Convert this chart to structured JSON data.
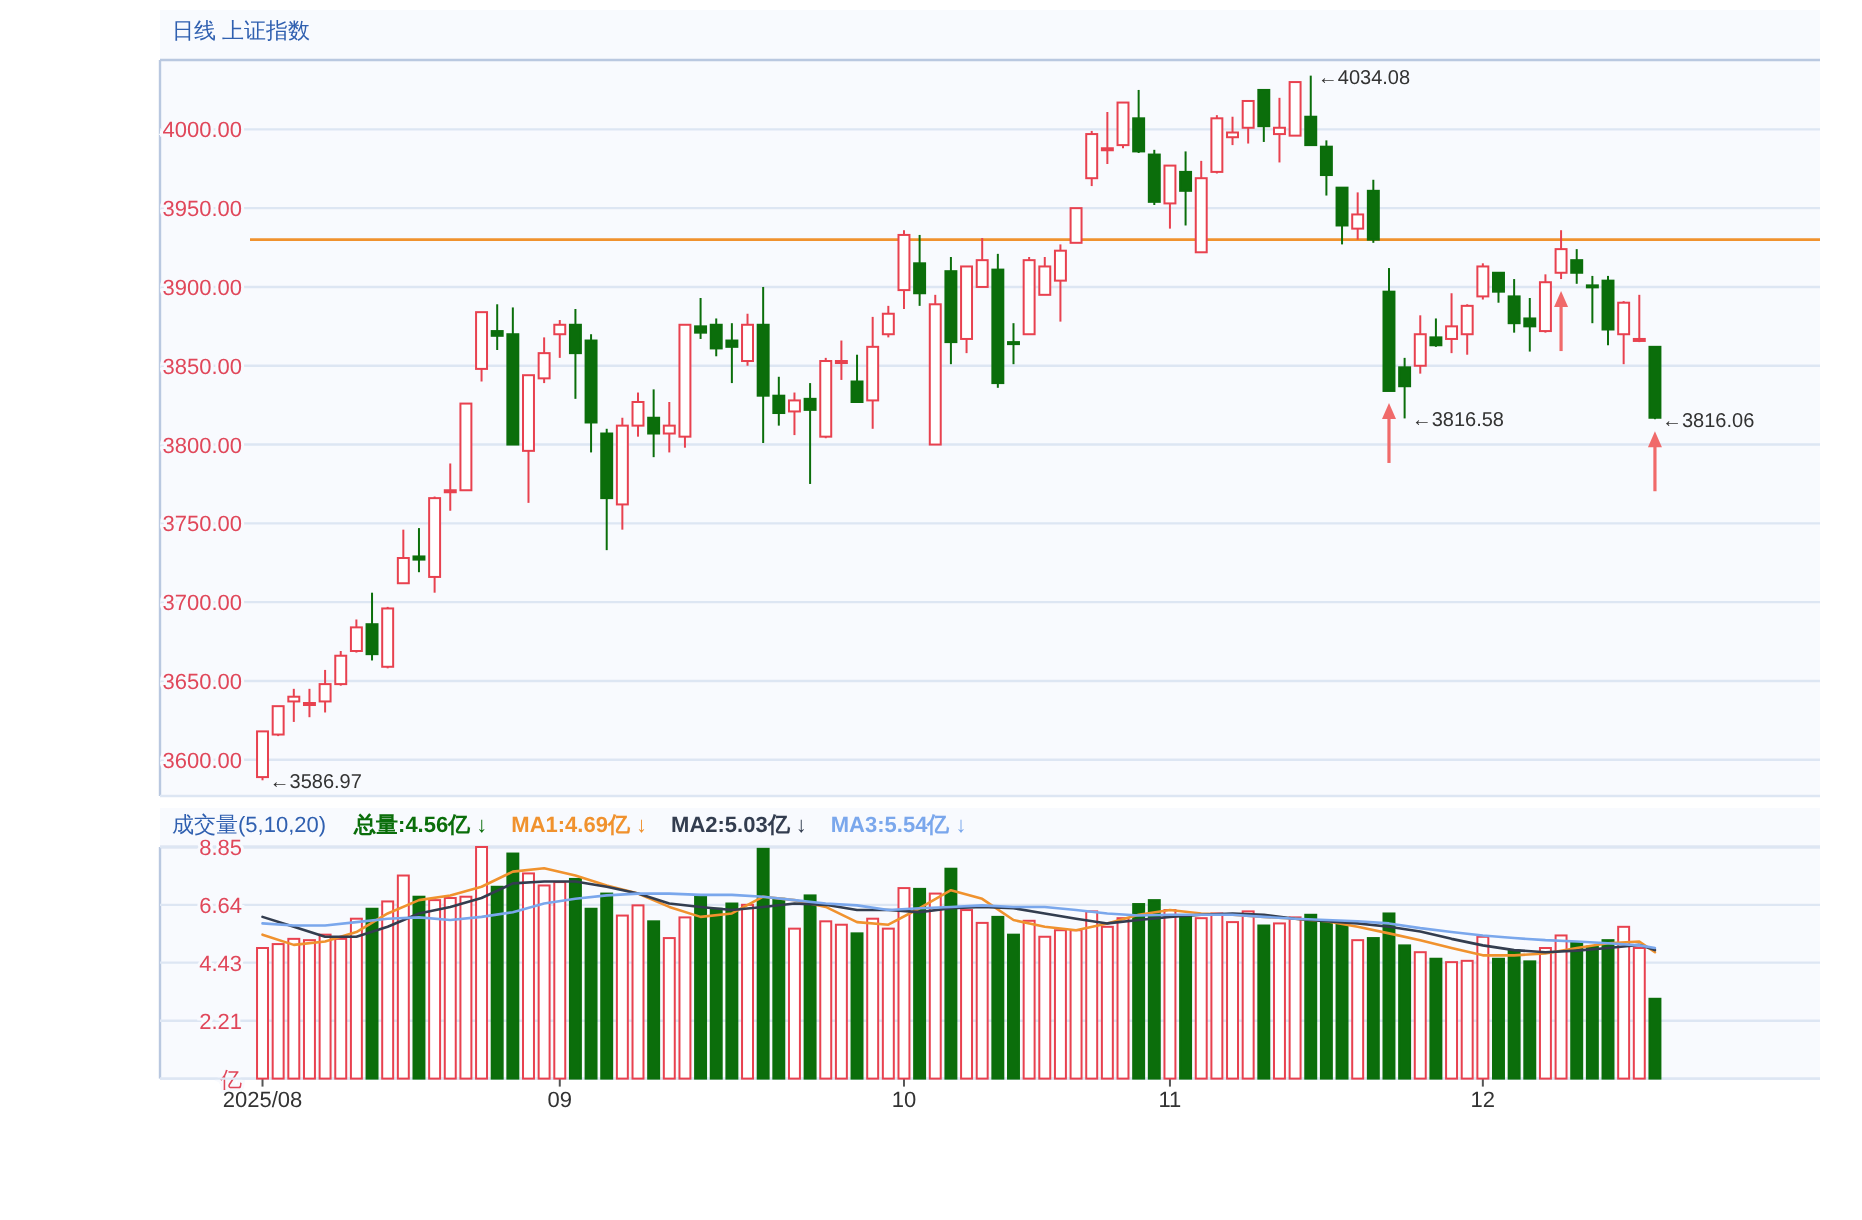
{
  "chart_data": [
    {
      "type": "candlestick",
      "title": "日线 上证指数",
      "categories": [
        "2025/08",
        null,
        null,
        null,
        null,
        null,
        null,
        null,
        null,
        null,
        null,
        null,
        null,
        null,
        null,
        null,
        null,
        null,
        null,
        "09",
        null,
        null,
        null,
        null,
        null,
        null,
        null,
        null,
        null,
        null,
        null,
        null,
        null,
        null,
        null,
        null,
        null,
        null,
        null,
        null,
        null,
        "10",
        null,
        null,
        null,
        null,
        null,
        null,
        null,
        null,
        null,
        null,
        null,
        null,
        null,
        null,
        null,
        null,
        "11",
        null,
        null,
        null,
        null,
        null,
        null,
        null,
        null,
        null,
        null,
        null,
        null,
        null,
        null,
        null,
        null,
        null,
        null,
        null,
        "12",
        null,
        null,
        null,
        null,
        null,
        null,
        null,
        null,
        null,
        null,
        null
      ],
      "ohlc": [
        [
          3589,
          3618,
          3586.97,
          3618
        ],
        [
          3616,
          3634,
          3615,
          3634
        ],
        [
          3637,
          3645,
          3624,
          3640
        ],
        [
          3635,
          3645,
          3627,
          3636
        ],
        [
          3637,
          3657,
          3630,
          3648
        ],
        [
          3648,
          3669,
          3647,
          3666
        ],
        [
          3669,
          3689,
          3668,
          3684
        ],
        [
          3686,
          3706,
          3663,
          3667
        ],
        [
          3659,
          3697,
          3658,
          3696
        ],
        [
          3712,
          3746,
          3712,
          3728
        ],
        [
          3729,
          3747,
          3719,
          3727
        ],
        [
          3716,
          3767,
          3706,
          3766
        ],
        [
          3770,
          3788,
          3758,
          3771
        ],
        [
          3771,
          3826,
          3771,
          3826
        ],
        [
          3848,
          3884,
          3840,
          3884
        ],
        [
          3872,
          3889,
          3860,
          3869
        ],
        [
          3870,
          3887,
          3800,
          3800
        ],
        [
          3796,
          3844,
          3763,
          3844
        ],
        [
          3842,
          3868,
          3839,
          3858
        ],
        [
          3870,
          3879,
          3855,
          3876
        ],
        [
          3876,
          3886,
          3829,
          3858
        ],
        [
          3866,
          3870,
          3795,
          3814
        ],
        [
          3807,
          3810,
          3733,
          3766
        ],
        [
          3762,
          3817,
          3746,
          3812
        ],
        [
          3812,
          3833,
          3805,
          3827
        ],
        [
          3817,
          3835,
          3792,
          3807
        ],
        [
          3807,
          3827,
          3795,
          3812
        ],
        [
          3805,
          3876,
          3798,
          3876
        ],
        [
          3875,
          3893,
          3867,
          3871
        ],
        [
          3876,
          3880,
          3856,
          3861
        ],
        [
          3866,
          3877,
          3839,
          3862
        ],
        [
          3853,
          3883,
          3850,
          3876
        ],
        [
          3876,
          3900,
          3801,
          3831
        ],
        [
          3831,
          3843,
          3812,
          3820
        ],
        [
          3821,
          3833,
          3806,
          3828
        ],
        [
          3829,
          3839,
          3775,
          3822
        ],
        [
          3805,
          3855,
          3804,
          3853
        ],
        [
          3852,
          3866,
          3841,
          3853
        ],
        [
          3840,
          3857,
          3827,
          3827
        ],
        [
          3828,
          3881,
          3810,
          3862
        ],
        [
          3870,
          3888,
          3868,
          3883
        ],
        [
          3898,
          3936,
          3886,
          3933
        ],
        [
          3915,
          3933,
          3888,
          3896
        ],
        [
          3800,
          3895,
          3800,
          3889
        ],
        [
          3910,
          3919,
          3851,
          3865
        ],
        [
          3867,
          3913,
          3858,
          3913
        ],
        [
          3900,
          3931,
          3900,
          3917
        ],
        [
          3911,
          3921,
          3836,
          3839
        ],
        [
          3865,
          3877,
          3851,
          3864
        ],
        [
          3870,
          3919,
          3870,
          3917
        ],
        [
          3895,
          3919,
          3895,
          3913
        ],
        [
          3904,
          3927,
          3878,
          3923
        ],
        [
          3928,
          3950,
          3928,
          3950
        ],
        [
          3969,
          3999,
          3964,
          3997
        ],
        [
          3987,
          4011,
          3978,
          3988
        ],
        [
          3990,
          4017,
          3988,
          4017
        ],
        [
          4007,
          4025,
          3985,
          3986
        ],
        [
          3984,
          3987,
          3952,
          3954
        ],
        [
          3953,
          3977,
          3937,
          3977
        ],
        [
          3973,
          3986,
          3939,
          3961
        ],
        [
          3922,
          3980,
          3922,
          3969
        ],
        [
          3973,
          4009,
          3972,
          4007
        ],
        [
          3995,
          4008,
          3990,
          3998
        ],
        [
          4001,
          4018,
          3991,
          4018
        ],
        [
          4025,
          4025,
          3992,
          4002
        ],
        [
          3997,
          4020,
          3979,
          4001
        ],
        [
          3996,
          4030,
          3996,
          4030
        ],
        [
          4008,
          4034.08,
          3990,
          3990
        ],
        [
          3989,
          3993,
          3958,
          3971
        ],
        [
          3963,
          3963,
          3927,
          3939
        ],
        [
          3937,
          3960,
          3930,
          3946
        ],
        [
          3961,
          3968,
          3928,
          3930
        ],
        [
          3897,
          3912,
          3834,
          3834
        ],
        [
          3849,
          3855,
          3816.58,
          3837
        ],
        [
          3850,
          3882,
          3845,
          3870
        ],
        [
          3868,
          3880,
          3862,
          3863
        ],
        [
          3867,
          3896,
          3858,
          3875
        ],
        [
          3870,
          3889,
          3857,
          3888
        ],
        [
          3894,
          3915,
          3892,
          3913
        ],
        [
          3909,
          3909,
          3890,
          3897
        ],
        [
          3894,
          3905,
          3871,
          3877
        ],
        [
          3880,
          3893,
          3859,
          3875
        ],
        [
          3872,
          3908,
          3871,
          3903
        ],
        [
          3909,
          3936,
          3905,
          3924
        ],
        [
          3917,
          3924,
          3902,
          3909
        ],
        [
          3901,
          3907,
          3877,
          3900
        ],
        [
          3904,
          3907,
          3863,
          3873
        ],
        [
          3870,
          3891,
          3851,
          3890
        ],
        [
          3866,
          3895,
          3865,
          3867
        ],
        [
          3862,
          3862,
          3816.06,
          3817
        ]
      ],
      "colors": [
        "#e8414f",
        "#e8414f",
        "#e8414f",
        "#e8414f",
        "#e8414f",
        "#e8414f",
        "#e8414f",
        "#0b6e0b",
        "#e8414f",
        "#e8414f",
        "#0b6e0b",
        "#e8414f",
        "#e8414f",
        "#e8414f",
        "#e8414f",
        "#0b6e0b",
        "#0b6e0b",
        "#e8414f",
        "#e8414f",
        "#e8414f",
        "#0b6e0b",
        "#0b6e0b",
        "#0b6e0b",
        "#e8414f",
        "#e8414f",
        "#0b6e0b",
        "#e8414f",
        "#e8414f",
        "#0b6e0b",
        "#0b6e0b",
        "#0b6e0b",
        "#e8414f",
        "#0b6e0b",
        "#0b6e0b",
        "#e8414f",
        "#0b6e0b",
        "#e8414f",
        "#e8414f",
        "#0b6e0b",
        "#e8414f",
        "#e8414f",
        "#e8414f",
        "#0b6e0b",
        "#e8414f",
        "#0b6e0b",
        "#e8414f",
        "#e8414f",
        "#0b6e0b",
        "#0b6e0b",
        "#e8414f",
        "#e8414f",
        "#e8414f",
        "#e8414f",
        "#e8414f",
        "#e8414f",
        "#e8414f",
        "#0b6e0b",
        "#0b6e0b",
        "#e8414f",
        "#0b6e0b",
        "#e8414f",
        "#e8414f",
        "#e8414f",
        "#e8414f",
        "#0b6e0b",
        "#e8414f",
        "#e8414f",
        "#0b6e0b",
        "#0b6e0b",
        "#0b6e0b",
        "#e8414f",
        "#0b6e0b",
        "#0b6e0b",
        "#0b6e0b",
        "#e8414f",
        "#0b6e0b",
        "#e8414f",
        "#e8414f",
        "#e8414f",
        "#0b6e0b",
        "#0b6e0b",
        "#0b6e0b",
        "#e8414f",
        "#e8414f",
        "#0b6e0b",
        "#0b6e0b",
        "#0b6e0b",
        "#e8414f",
        "#e8414f",
        "#0b6e0b"
      ],
      "ylim": [
        3577,
        4044
      ],
      "yticks": [
        {
          "value": 3600,
          "label": "3600.00"
        },
        {
          "value": 3650,
          "label": "3650.00"
        },
        {
          "value": 3700,
          "label": "3700.00"
        },
        {
          "value": 3750,
          "label": "3750.00"
        },
        {
          "value": 3800,
          "label": "3800.00"
        },
        {
          "value": 3850,
          "label": "3850.00"
        },
        {
          "value": 3900,
          "label": "3900.00"
        },
        {
          "value": 3950,
          "label": "3950.00"
        },
        {
          "value": 4000,
          "label": "4000.00"
        }
      ],
      "grid": "y",
      "tick_labels": "y",
      "ref_lines": [
        {
          "axis": "y",
          "value": 3930,
          "color": "#f0922e"
        }
      ],
      "annotations": [
        "←3586.97",
        "←4034.08",
        "←3816.58",
        "←3816.06"
      ]
    },
    {
      "type": "bar",
      "title": "成交量(5,10,20)",
      "categories": [
        "2025/08",
        null,
        null,
        null,
        null,
        null,
        null,
        null,
        null,
        null,
        null,
        null,
        null,
        null,
        null,
        null,
        null,
        null,
        null,
        "09",
        null,
        null,
        null,
        null,
        null,
        null,
        null,
        null,
        null,
        null,
        null,
        null,
        null,
        null,
        null,
        null,
        null,
        null,
        null,
        null,
        null,
        "10",
        null,
        null,
        null,
        null,
        null,
        null,
        null,
        null,
        null,
        null,
        null,
        null,
        null,
        null,
        null,
        null,
        "11",
        null,
        null,
        null,
        null,
        null,
        null,
        null,
        null,
        null,
        null,
        null,
        null,
        null,
        null,
        null,
        null,
        null,
        null,
        null,
        "12",
        null,
        null,
        null,
        null,
        null,
        null,
        null,
        null,
        null,
        null,
        null
      ],
      "ylim": [
        0,
        8.85
      ],
      "yticks": [
        {
          "value": 0,
          "label": "亿"
        },
        2.21,
        4.43,
        6.64,
        8.85
      ],
      "grid": "y",
      "legend": "top left",
      "series": [
        {
          "name": "总量:4.56亿 ↓",
          "color": "#0b6e0b",
          "colors": [
            "#e8414f",
            "#e8414f",
            "#e8414f",
            "#e8414f",
            "#e8414f",
            "#e8414f",
            "#e8414f",
            "#0b6e0b",
            "#e8414f",
            "#e8414f",
            "#0b6e0b",
            "#e8414f",
            "#e8414f",
            "#e8414f",
            "#e8414f",
            "#0b6e0b",
            "#0b6e0b",
            "#e8414f",
            "#e8414f",
            "#e8414f",
            "#0b6e0b",
            "#0b6e0b",
            "#0b6e0b",
            "#e8414f",
            "#e8414f",
            "#0b6e0b",
            "#e8414f",
            "#e8414f",
            "#0b6e0b",
            "#0b6e0b",
            "#0b6e0b",
            "#e8414f",
            "#0b6e0b",
            "#0b6e0b",
            "#e8414f",
            "#0b6e0b",
            "#e8414f",
            "#e8414f",
            "#0b6e0b",
            "#e8414f",
            "#e8414f",
            "#e8414f",
            "#0b6e0b",
            "#e8414f",
            "#0b6e0b",
            "#e8414f",
            "#e8414f",
            "#0b6e0b",
            "#0b6e0b",
            "#e8414f",
            "#e8414f",
            "#e8414f",
            "#e8414f",
            "#e8414f",
            "#e8414f",
            "#e8414f",
            "#0b6e0b",
            "#0b6e0b",
            "#e8414f",
            "#0b6e0b",
            "#e8414f",
            "#e8414f",
            "#e8414f",
            "#e8414f",
            "#0b6e0b",
            "#e8414f",
            "#e8414f",
            "#0b6e0b",
            "#0b6e0b",
            "#0b6e0b",
            "#e8414f",
            "#0b6e0b",
            "#0b6e0b",
            "#0b6e0b",
            "#e8414f",
            "#0b6e0b",
            "#e8414f",
            "#e8414f",
            "#e8414f",
            "#0b6e0b",
            "#0b6e0b",
            "#0b6e0b",
            "#e8414f",
            "#e8414f",
            "#0b6e0b",
            "#0b6e0b",
            "#0b6e0b",
            "#e8414f",
            "#e8414f",
            "#0b6e0b"
          ],
          "values": [
            4.99,
            5.14,
            5.34,
            5.29,
            5.5,
            5.34,
            6.11,
            6.49,
            6.77,
            7.76,
            6.95,
            6.82,
            6.9,
            6.95,
            8.85,
            7.33,
            8.6,
            7.84,
            7.38,
            7.51,
            7.63,
            6.49,
            7.07,
            6.23,
            6.62,
            6.01,
            5.37,
            6.16,
            7.0,
            6.49,
            6.69,
            6.64,
            8.78,
            6.87,
            5.73,
            7.0,
            6.01,
            5.88,
            5.55,
            6.11,
            5.73,
            7.28,
            7.25,
            7.07,
            8.02,
            6.44,
            5.95,
            6.18,
            5.5,
            6.03,
            5.42,
            5.67,
            5.67,
            6.39,
            5.8,
            6.13,
            6.67,
            6.82,
            6.44,
            6.21,
            6.13,
            6.31,
            5.98,
            6.39,
            5.85,
            5.93,
            6.16,
            6.26,
            6.01,
            6.01,
            5.29,
            5.37,
            6.31,
            5.09,
            4.83,
            4.58,
            4.45,
            4.5,
            5.42,
            4.58,
            4.89,
            4.48,
            4.99,
            5.47,
            5.22,
            5.04,
            5.29,
            5.8,
            4.99,
            3.05
          ]
        },
        {
          "name": "MA1:4.69亿 ↓",
          "type": "line",
          "color": "#f0922e",
          "values": [
            5.5,
            null,
            5.11,
            null,
            5.24,
            null,
            5.6,
            null,
            6.31,
            null,
            6.82,
            null,
            7.0,
            null,
            7.33,
            null,
            7.91,
            null,
            8.04,
            null,
            7.76,
            null,
            7.38,
            null,
            7.07,
            null,
            6.56,
            null,
            6.18,
            null,
            6.31,
            null,
            6.95,
            null,
            6.82,
            null,
            6.56,
            null,
            5.98,
            null,
            5.88,
            null,
            6.51,
            null,
            7.2,
            null,
            6.87,
            null,
            6.06,
            null,
            5.8,
            null,
            5.67,
            null,
            5.93,
            null,
            6.26,
            null,
            6.44,
            null,
            6.31,
            null,
            6.26,
            null,
            6.18,
            null,
            6.11,
            null,
            6.01,
            null,
            5.8,
            null,
            5.55,
            null,
            5.29,
            null,
            4.99,
            null,
            4.71,
            null,
            4.71,
            null,
            4.78,
            null,
            4.99,
            null,
            5.17,
            null,
            5.24,
            4.83
          ]
        },
        {
          "name": "MA2:5.03亿 ↓",
          "type": "line",
          "color": "#333d4f",
          "values": [
            6.18,
            null,
            5.8,
            null,
            5.42,
            null,
            5.42,
            null,
            5.8,
            null,
            6.31,
            null,
            6.56,
            null,
            6.9,
            null,
            7.46,
            null,
            7.53,
            null,
            7.53,
            null,
            7.33,
            null,
            7.07,
            null,
            6.69,
            null,
            6.56,
            null,
            6.44,
            null,
            6.56,
            null,
            6.69,
            null,
            6.64,
            null,
            6.44,
            null,
            6.44,
            null,
            6.36,
            null,
            6.51,
            null,
            6.56,
            null,
            6.51,
            null,
            6.31,
            null,
            6.11,
            null,
            5.93,
            null,
            6.06,
            null,
            6.18,
            null,
            6.26,
            null,
            6.31,
            null,
            6.26,
            null,
            6.11,
            null,
            6.01,
            null,
            5.93,
            null,
            5.8,
            null,
            5.62,
            null,
            5.34,
            null,
            5.09,
            null,
            4.91,
            null,
            4.83,
            null,
            4.89,
            null,
            4.99,
            null,
            5.11,
            4.91
          ]
        },
        {
          "name": "MA3:5.54亿 ↓",
          "type": "line",
          "color": "#7aa7ec",
          "values": [
            5.93,
            null,
            5.85,
            null,
            5.85,
            null,
            5.98,
            null,
            6.11,
            null,
            6.16,
            null,
            6.06,
            null,
            6.18,
            null,
            6.36,
            null,
            6.69,
            null,
            6.87,
            null,
            7.0,
            null,
            7.07,
            null,
            7.07,
            null,
            7.02,
            null,
            7.02,
            null,
            6.95,
            null,
            6.82,
            null,
            6.69,
            null,
            6.62,
            null,
            6.44,
            null,
            6.51,
            null,
            6.56,
            null,
            6.62,
            null,
            6.56,
            null,
            6.56,
            null,
            6.44,
            null,
            6.31,
            null,
            6.23,
            null,
            6.26,
            null,
            6.26,
            null,
            6.26,
            null,
            6.18,
            null,
            6.11,
            null,
            6.06,
            null,
            6.01,
            null,
            5.93,
            null,
            5.75,
            null,
            5.6,
            null,
            5.47,
            null,
            5.37,
            null,
            5.29,
            null,
            5.24,
            null,
            5.17,
            null,
            5.09,
            4.99
          ]
        }
      ]
    }
  ]
}
